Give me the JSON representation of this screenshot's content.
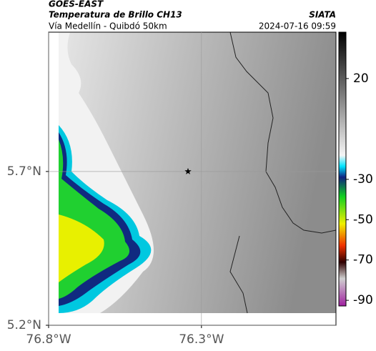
{
  "header": {
    "satellite": "GOES-EAST",
    "title": "Temperatura de Brillo CH13",
    "subtitle": "Vía Medellín - Quibdó 50km",
    "source": "SIATA",
    "timestamp": "2024-07-16 09:59"
  },
  "chart_data": {
    "type": "map",
    "xlim": [
      -76.8,
      -75.86
    ],
    "ylim": [
      5.2,
      6.153
    ],
    "xticks": [
      {
        "value": -76.8,
        "label": "76.8°W"
      },
      {
        "value": -76.3,
        "label": "76.3°W"
      }
    ],
    "yticks": [
      {
        "value": 5.7,
        "label": "5.7°N"
      },
      {
        "value": 5.2,
        "label": "5.2°N"
      }
    ],
    "grid": true,
    "marker": {
      "x": -76.344,
      "y": 5.7
    },
    "colorbar": {
      "lim": [
        -92.8,
        43
      ],
      "ticks": [
        20,
        -30,
        -50,
        -70,
        -90
      ]
    }
  }
}
